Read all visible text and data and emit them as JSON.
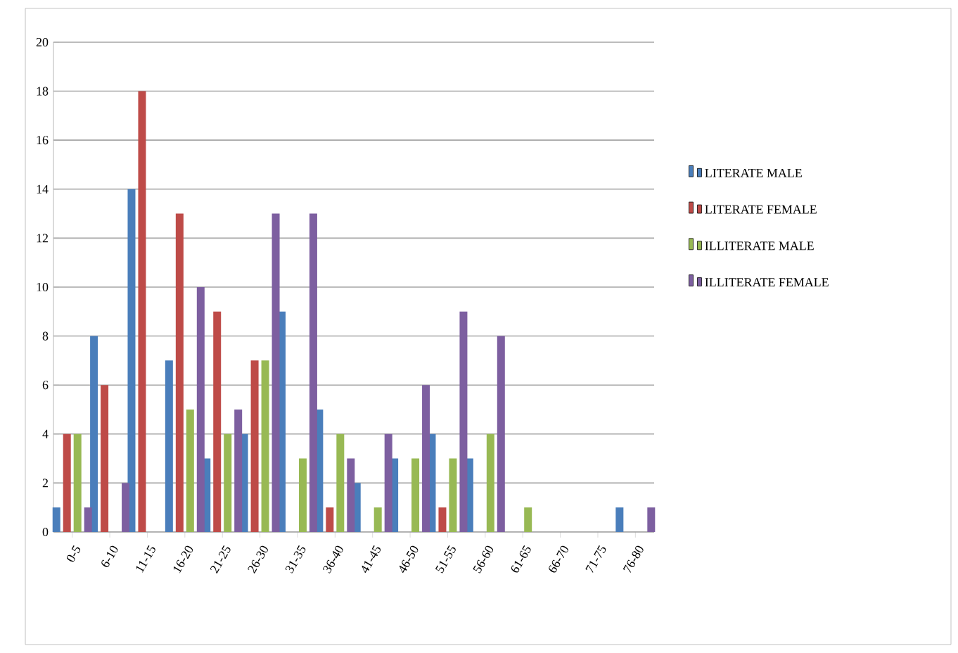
{
  "chart_data": {
    "type": "bar",
    "categories": [
      "0-5",
      "6-10",
      "11-15",
      "16-20",
      "21-25",
      "26-30",
      "31-35",
      "36-40",
      "41-45",
      "46-50",
      "51-55",
      "56-60",
      "61-65",
      "66-70",
      "71-75",
      "76-80"
    ],
    "series": [
      {
        "name": "LITERATE MALE",
        "color": "#4a7ebb",
        "values": [
          1,
          8,
          14,
          7,
          3,
          4,
          9,
          5,
          2,
          3,
          4,
          3,
          0,
          0,
          0,
          1
        ]
      },
      {
        "name": "LITERATE FEMALE",
        "color": "#be4b48",
        "values": [
          4,
          6,
          18,
          13,
          9,
          7,
          0,
          1,
          0,
          0,
          1,
          0,
          0,
          0,
          0,
          0
        ]
      },
      {
        "name": "ILLITERATE MALE",
        "color": "#98b954",
        "values": [
          4,
          0,
          0,
          5,
          4,
          7,
          3,
          4,
          1,
          3,
          3,
          4,
          1,
          0,
          0,
          0
        ]
      },
      {
        "name": "ILLITERATE FEMALE",
        "color": "#7d5fa0",
        "values": [
          1,
          2,
          0,
          10,
          5,
          13,
          13,
          3,
          4,
          6,
          9,
          8,
          0,
          0,
          0,
          1
        ]
      }
    ],
    "ylim": [
      0,
      20
    ],
    "yticks": [
      0,
      2,
      4,
      6,
      8,
      10,
      12,
      14,
      16,
      18,
      20
    ],
    "grid": "y",
    "legend": "right"
  }
}
